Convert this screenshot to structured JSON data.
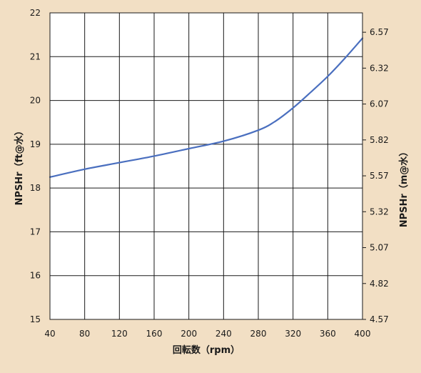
{
  "chart_data": {
    "type": "line",
    "xlabel": "回転数（rpm）",
    "ylabel_left": "NPSHr（ft@水）",
    "ylabel_right": "NPSHr（m@水）",
    "xlim": [
      40,
      400
    ],
    "ylim_left": [
      15,
      22
    ],
    "ylim_right": [
      4.57,
      6.705
    ],
    "x_ticks": [
      40,
      80,
      120,
      160,
      200,
      240,
      280,
      320,
      360,
      400
    ],
    "y_left_ticks": [
      15,
      16,
      17,
      18,
      19,
      20,
      21,
      22
    ],
    "y_right_ticks": [
      "4.57",
      "4.82",
      "5.07",
      "5.32",
      "5.57",
      "5.82",
      "6.07",
      "6.32",
      "6.57"
    ],
    "grid": true,
    "series": [
      {
        "color": "#4a6fbf",
        "x": [
          40,
          80,
          120,
          160,
          200,
          240,
          280,
          300,
          320,
          340,
          360,
          380,
          400
        ],
        "y": [
          18.25,
          18.43,
          18.58,
          18.73,
          18.9,
          19.07,
          19.32,
          19.53,
          19.83,
          20.18,
          20.55,
          20.97,
          21.42
        ]
      }
    ]
  }
}
